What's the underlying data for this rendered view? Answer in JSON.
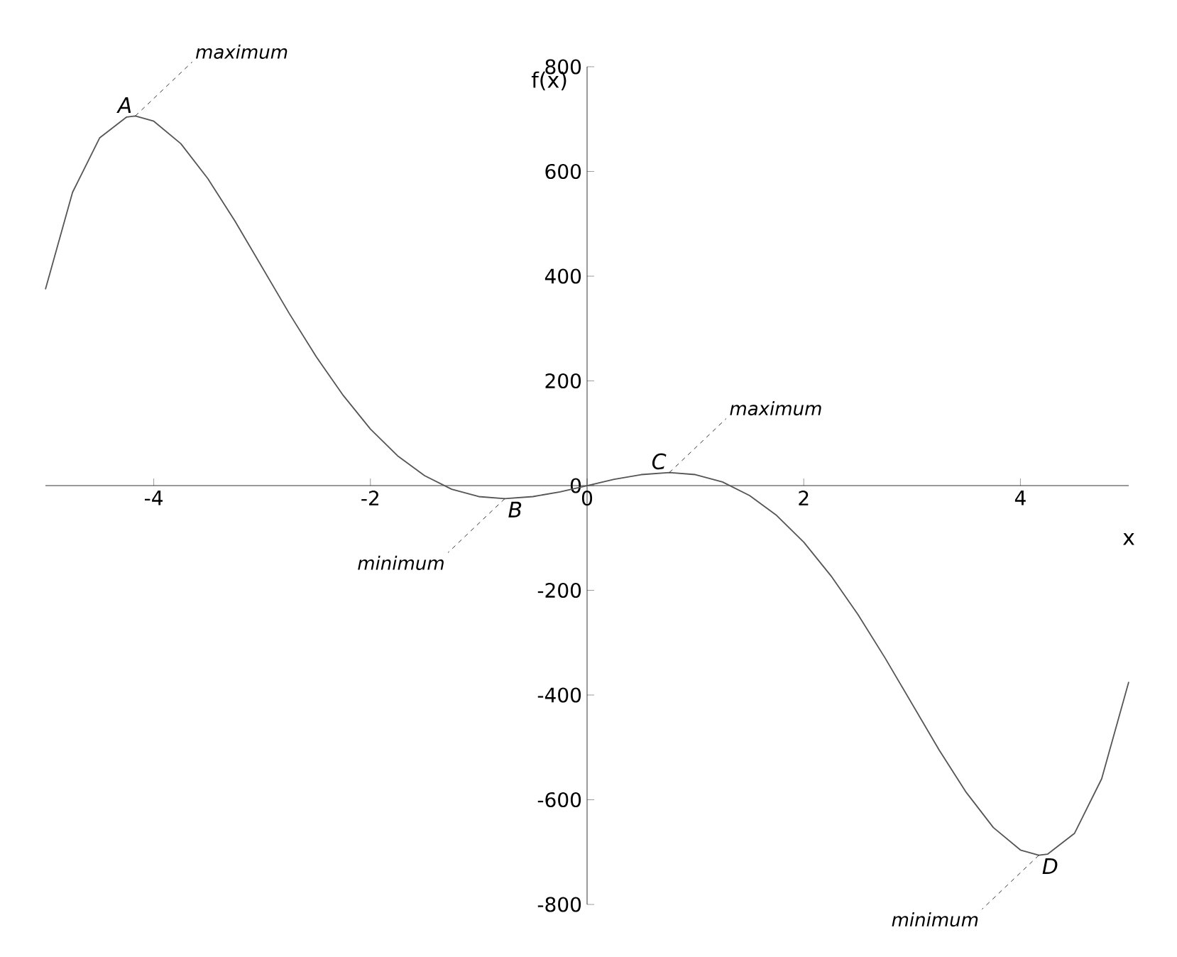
{
  "chart_data": {
    "type": "line",
    "xlabel": "x",
    "ylabel": "f(x)",
    "x": [
      -5,
      -4.75,
      -4.5,
      -4.25,
      -4.17,
      -4,
      -3.75,
      -3.5,
      -3.25,
      -3,
      -2.75,
      -2.5,
      -2.25,
      -2,
      -1.75,
      -1.5,
      -1.25,
      -1,
      -0.76,
      -0.5,
      -0.25,
      0,
      0.25,
      0.5,
      0.76,
      1,
      1.25,
      1.5,
      1.75,
      2,
      2.25,
      2.5,
      2.75,
      3,
      3.25,
      3.5,
      3.75,
      4,
      4.17,
      4.25,
      4.5,
      4.75,
      5
    ],
    "series": [
      {
        "color": "#555555",
        "values": [
          375,
          560,
          664,
          704,
          706,
          696,
          653,
          586,
          505,
          417,
          329,
          246,
          172,
          108,
          57,
          19,
          -7,
          -21,
          -25,
          -21,
          -12,
          0,
          12,
          21,
          25,
          21,
          7,
          -19,
          -57,
          -108,
          -172,
          -246,
          -329,
          -417,
          -505,
          -586,
          -653,
          -696,
          -706,
          -704,
          -664,
          -560,
          -375
        ]
      }
    ],
    "xlim": [
      -5,
      5
    ],
    "ylim": [
      -800,
      800
    ],
    "xticks": [
      -4,
      -2,
      0,
      2,
      4
    ],
    "yticks": [
      -800,
      -600,
      -400,
      -200,
      0,
      200,
      400,
      600,
      800
    ],
    "grid": false,
    "marker": "none",
    "line_style": "solid",
    "annotations": [
      {
        "text": "A",
        "x": -4.17,
        "y": 706
      },
      {
        "text": "maximum",
        "x": -4.17,
        "y": 706
      },
      {
        "text": "B",
        "x": -0.76,
        "y": -25
      },
      {
        "text": "minimum",
        "x": -0.76,
        "y": -25
      },
      {
        "text": "C",
        "x": 0.76,
        "y": 25
      },
      {
        "text": "maximum",
        "x": 0.76,
        "y": 25
      },
      {
        "text": "D",
        "x": 4.17,
        "y": -706
      },
      {
        "text": "minimum",
        "x": 4.17,
        "y": -706
      }
    ]
  }
}
